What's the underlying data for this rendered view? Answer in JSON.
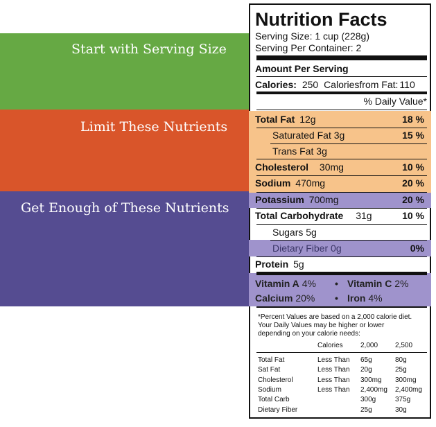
{
  "colors": {
    "green": "#66a944",
    "orange": "#d9552a",
    "purple": "#554c91",
    "light_orange": "#f7c38a",
    "light_purple": "#9f93cc"
  },
  "bands": [
    {
      "label": "Start with Serving Size"
    },
    {
      "label": "Limit These Nutrients"
    },
    {
      "label": "Get Enough of These Nutrients"
    }
  ],
  "panel": {
    "title": "Nutrition Facts",
    "serving_size": "Serving Size: 1 cup (228g)",
    "servings_per_container": "Serving Per Container: 2",
    "amount_per_serving": "Amount Per Serving",
    "calories_label": "Calories:",
    "calories_value": "250",
    "calories_fat_label": "Caloriesfrom Fat:",
    "calories_fat_value": "110",
    "daily_value_header": "% Daily Value*",
    "nutrients": [
      {
        "name": "Total Fat",
        "amount": "12g",
        "dv": "18 %"
      },
      {
        "name": "Saturated Fat",
        "amount": "3g",
        "dv": "15 %"
      },
      {
        "name": "Trans Fat",
        "amount": "3g",
        "dv": ""
      },
      {
        "name": "Cholesterol",
        "amount": "30mg",
        "dv": "10 %"
      },
      {
        "name": "Sodium",
        "amount": "470mg",
        "dv": "20 %"
      },
      {
        "name": "Potassium",
        "amount": "700mg",
        "dv": "20 %"
      },
      {
        "name": "Total Carbohydrate",
        "amount": "31g",
        "dv": "10 %"
      },
      {
        "name": "Sugars",
        "amount": "5g",
        "dv": ""
      },
      {
        "name": "Dietary Fiber",
        "amount": "0g",
        "dv": "0%"
      },
      {
        "name": "Protein",
        "amount": "5g",
        "dv": ""
      }
    ],
    "vitamins": [
      {
        "name": "Vitamin A",
        "value": "4%"
      },
      {
        "name": "Vitamin C",
        "value": "2%"
      },
      {
        "name": "Calcium",
        "value": "20%"
      },
      {
        "name": "Iron",
        "value": "4%"
      }
    ],
    "bullet": "•",
    "footnote": [
      "*Percent Values are based on a 2,000 calorie diet.",
      "Your Daily Values may be higher or lower",
      "depending on your calorie needs:"
    ],
    "dv_table": {
      "headers": [
        "",
        "",
        "Calories",
        "2,000",
        "2,500"
      ],
      "rows": [
        [
          "Total Fat",
          "Less Than",
          "65g",
          "80g"
        ],
        [
          "Sat Fat",
          "Less Than",
          "20g",
          "25g"
        ],
        [
          "Cholesterol",
          "Less Than",
          "300mg",
          "300mg"
        ],
        [
          "Sodium",
          "Less Than",
          "2,400mg",
          "2,400mg"
        ],
        [
          "Total Carb",
          "",
          "300g",
          "375g"
        ],
        [
          "Dietary Fiber",
          "",
          "25g",
          "30g"
        ]
      ]
    }
  }
}
